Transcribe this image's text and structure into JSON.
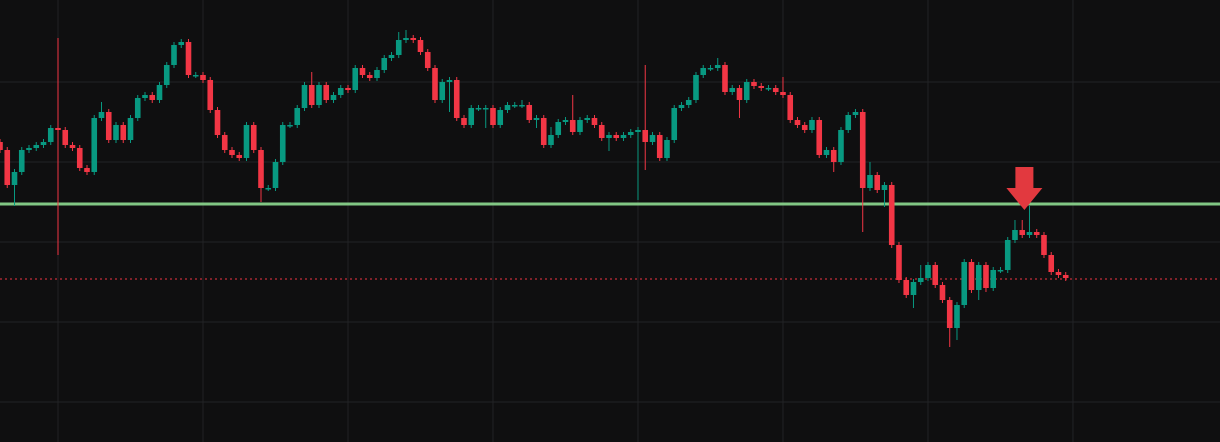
{
  "chart_data": {
    "type": "candlestick",
    "up_color": "#089981",
    "down_color": "#f23645",
    "xlim": [
      0,
      168.28
    ],
    "ylim": [
      0,
      442
    ],
    "xticks": [
      8,
      28,
      48,
      68,
      88,
      108,
      128,
      148
    ],
    "yticks": [
      40,
      120,
      200,
      280,
      360
    ],
    "grid": true,
    "open": [
      300,
      292,
      257,
      270,
      292,
      294,
      297,
      300,
      314,
      312,
      297,
      294,
      274,
      270,
      324,
      330,
      302,
      317,
      302,
      324,
      344,
      347,
      342,
      357,
      377,
      397,
      400,
      367,
      367,
      362,
      332,
      307,
      292,
      287,
      284,
      317,
      292,
      254,
      254,
      280,
      317,
      317,
      334,
      357,
      337,
      357,
      342,
      347,
      354,
      352,
      374,
      367,
      364,
      372,
      384,
      387,
      402,
      404,
      402,
      390,
      374,
      342,
      360,
      362,
      324,
      317,
      334,
      334,
      334,
      317,
      332,
      337,
      337,
      337,
      322,
      324,
      297,
      307,
      320,
      322,
      310,
      322,
      324,
      317,
      304,
      307,
      304,
      307,
      310,
      312,
      300,
      307,
      284,
      302,
      334,
      337,
      342,
      367,
      374,
      374,
      377,
      350,
      354,
      342,
      360,
      356,
      354,
      354,
      350,
      347,
      322,
      317,
      312,
      322,
      287,
      292,
      280,
      312,
      327,
      330,
      254,
      267,
      252,
      257,
      197,
      162,
      147,
      160,
      164,
      177,
      157,
      142,
      114,
      137,
      180,
      152,
      177,
      154,
      172,
      172,
      202,
      212,
      207,
      210,
      207,
      187,
      170,
      167
    ],
    "high": [
      303,
      295,
      273,
      295,
      297,
      300,
      303,
      317,
      404,
      315,
      300,
      297,
      277,
      327,
      340,
      333,
      320,
      320,
      327,
      347,
      350,
      350,
      360,
      380,
      400,
      403,
      403,
      370,
      370,
      365,
      335,
      310,
      295,
      290,
      320,
      320,
      295,
      257,
      283,
      320,
      320,
      337,
      360,
      370,
      360,
      360,
      350,
      357,
      357,
      377,
      377,
      370,
      375,
      387,
      390,
      410,
      412,
      407,
      405,
      393,
      377,
      363,
      365,
      365,
      327,
      337,
      337,
      337,
      337,
      335,
      340,
      340,
      342,
      340,
      327,
      327,
      315,
      323,
      325,
      347,
      325,
      327,
      327,
      320,
      310,
      310,
      310,
      313,
      315,
      377,
      310,
      310,
      305,
      337,
      340,
      345,
      370,
      377,
      377,
      384,
      380,
      357,
      357,
      363,
      363,
      359,
      357,
      357,
      365,
      350,
      325,
      320,
      325,
      325,
      295,
      295,
      315,
      330,
      333,
      333,
      280,
      270,
      260,
      260,
      200,
      165,
      163,
      177,
      180,
      180,
      160,
      145,
      140,
      183,
      183,
      180,
      180,
      175,
      175,
      205,
      222,
      222,
      236,
      213,
      210,
      190,
      173,
      170
    ],
    "low": [
      289,
      254,
      236,
      267,
      289,
      291,
      294,
      297,
      187,
      294,
      291,
      271,
      267,
      267,
      321,
      299,
      299,
      299,
      299,
      321,
      341,
      339,
      339,
      354,
      374,
      394,
      364,
      364,
      359,
      329,
      304,
      289,
      284,
      281,
      281,
      289,
      240,
      251,
      251,
      277,
      314,
      314,
      331,
      334,
      334,
      339,
      339,
      344,
      349,
      349,
      364,
      361,
      361,
      369,
      381,
      384,
      399,
      399,
      387,
      371,
      339,
      339,
      330,
      321,
      314,
      314,
      331,
      314,
      314,
      314,
      329,
      334,
      334,
      319,
      314,
      294,
      294,
      304,
      317,
      307,
      307,
      319,
      314,
      301,
      291,
      301,
      301,
      304,
      242,
      272,
      297,
      281,
      281,
      299,
      331,
      334,
      339,
      364,
      371,
      371,
      347,
      347,
      324,
      339,
      353,
      351,
      351,
      347,
      344,
      319,
      314,
      309,
      309,
      284,
      284,
      270,
      277,
      309,
      324,
      210,
      251,
      249,
      235,
      194,
      159,
      144,
      134,
      157,
      161,
      154,
      139,
      95,
      102,
      134,
      149,
      142,
      150,
      151,
      169,
      169,
      199,
      204,
      204,
      204,
      184,
      167,
      164,
      161
    ],
    "close": [
      292,
      257,
      270,
      292,
      294,
      297,
      300,
      314,
      312,
      297,
      294,
      274,
      270,
      324,
      330,
      302,
      317,
      302,
      324,
      344,
      347,
      342,
      357,
      377,
      397,
      400,
      367,
      367,
      362,
      332,
      307,
      292,
      287,
      284,
      317,
      292,
      254,
      254,
      280,
      317,
      317,
      334,
      357,
      337,
      357,
      342,
      347,
      354,
      352,
      374,
      367,
      364,
      372,
      384,
      387,
      402,
      404,
      402,
      390,
      374,
      342,
      360,
      362,
      324,
      317,
      334,
      334,
      334,
      317,
      332,
      337,
      337,
      337,
      322,
      324,
      297,
      307,
      320,
      322,
      310,
      322,
      324,
      317,
      304,
      307,
      304,
      307,
      310,
      312,
      300,
      307,
      284,
      302,
      334,
      337,
      342,
      367,
      374,
      374,
      377,
      350,
      354,
      342,
      360,
      356,
      354,
      354,
      350,
      347,
      322,
      317,
      312,
      322,
      287,
      292,
      280,
      312,
      327,
      330,
      254,
      267,
      252,
      257,
      197,
      162,
      147,
      160,
      164,
      177,
      157,
      142,
      114,
      137,
      180,
      152,
      177,
      154,
      172,
      172,
      202,
      212,
      207,
      210,
      207,
      187,
      170,
      167,
      164
    ],
    "hlines": [
      {
        "value": 238,
        "color": "#81c784",
        "style": "solid"
      },
      {
        "value": 163,
        "color": "#f23645",
        "style": "dotted"
      }
    ],
    "marker": {
      "x": 141.3,
      "y": 232,
      "color": "#e2393f"
    }
  }
}
